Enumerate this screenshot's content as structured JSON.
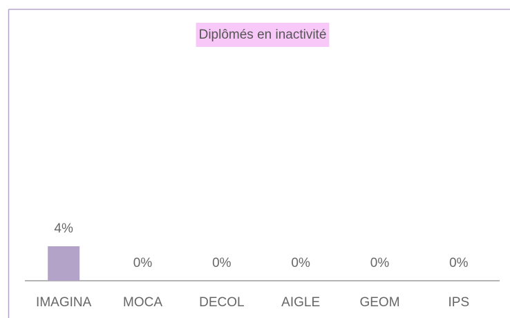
{
  "chart_data": {
    "type": "bar",
    "title": "Diplômés en inactivité",
    "categories": [
      "IMAGINA",
      "MOCA",
      "DECOL",
      "AIGLE",
      "GEOM",
      "IPS"
    ],
    "values": [
      4,
      0,
      0,
      0,
      0,
      0
    ],
    "value_labels": [
      "4%",
      "0%",
      "0%",
      "0%",
      "0%",
      "0%"
    ],
    "color": "#b3a3c8"
  }
}
